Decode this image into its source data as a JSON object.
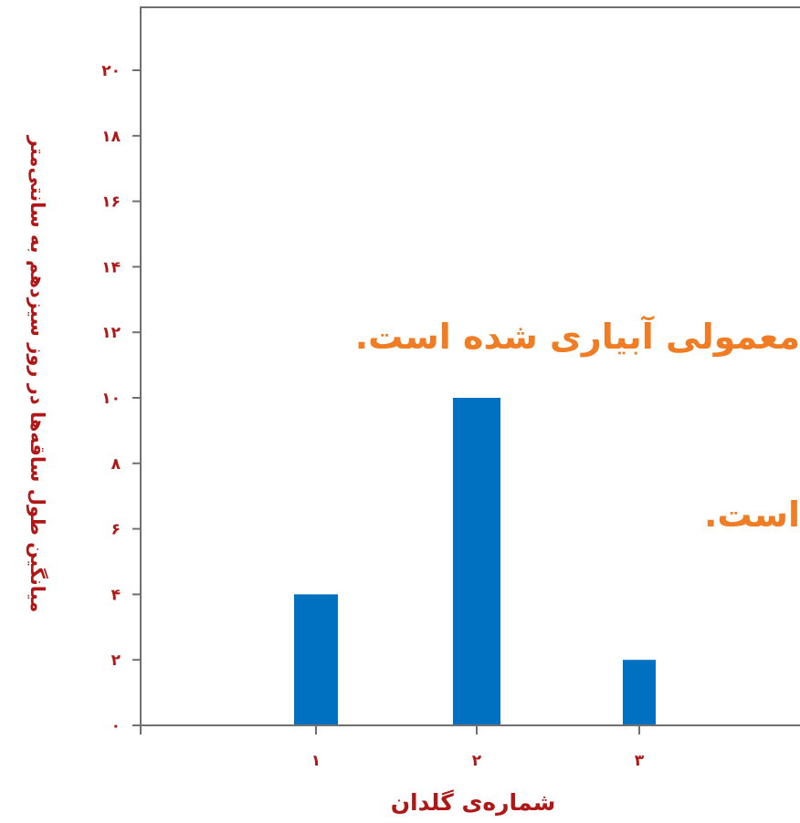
{
  "chart_data": {
    "type": "bar",
    "categories": [
      "۱",
      "۲",
      "۳"
    ],
    "values": [
      4,
      10,
      2
    ],
    "xlabel": "شماره‌ی گلدان",
    "ylabel": "میانگین طول ساقه‌ها در روز سیزدهم به سانتی‌متر",
    "ylim": [
      0,
      22
    ],
    "yticks": [
      0,
      2,
      4,
      6,
      8,
      10,
      12,
      14,
      16,
      18,
      20
    ],
    "ytick_labels": [
      "۰",
      "۲",
      "۴",
      "۶",
      "۸",
      "۱۰",
      "۱۲",
      "۱۴",
      "۱۶",
      "۱۸",
      "۲۰"
    ],
    "bar_color": "#0070c0",
    "axis_color": "#707070",
    "label_color": "#b01818",
    "grid": false
  },
  "overlay_text": {
    "line1": "معمولی آبیاری شده است.",
    "line2": "است.",
    "color": "#f07d24"
  }
}
